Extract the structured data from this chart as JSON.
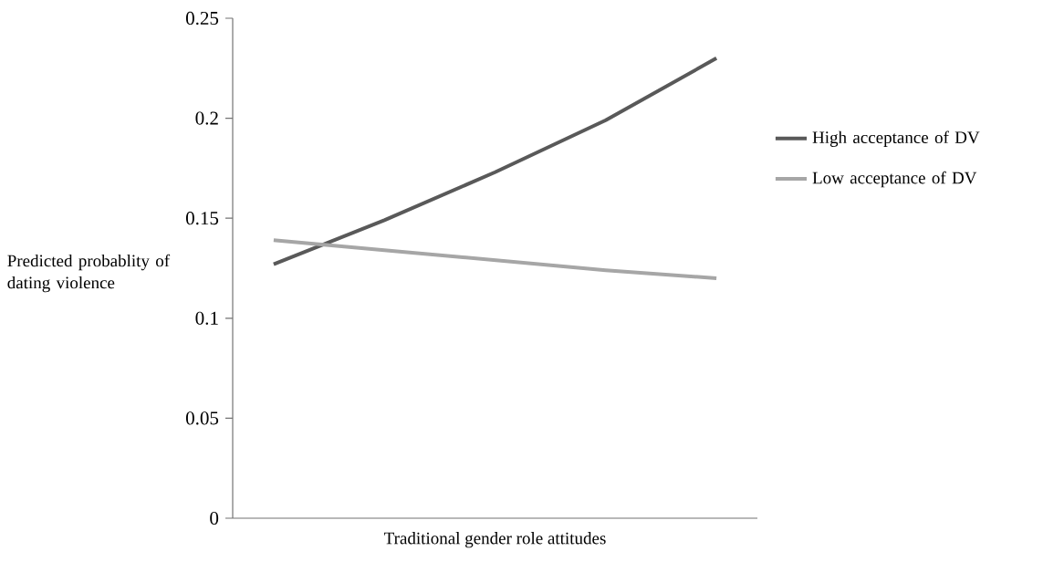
{
  "chart_data": {
    "type": "line",
    "xlabel": "Traditional gender role attitudes",
    "ylabel": "Predicted probablity of dating violence",
    "categories": [
      null,
      null,
      null,
      null,
      null
    ],
    "series": [
      {
        "name": "High acceptance of DV",
        "color": "#595959",
        "values": [
          0.127,
          0.149,
          0.173,
          0.199,
          0.23
        ]
      },
      {
        "name": "Low acceptance of DV",
        "color": "#a6a6a6",
        "values": [
          0.139,
          0.134,
          0.129,
          0.124,
          0.12
        ]
      }
    ],
    "ylim": [
      0,
      0.25
    ],
    "yticks": [
      0,
      0.05,
      0.1,
      0.15,
      0.2,
      0.25
    ],
    "grid": false,
    "legend": "right",
    "marker": "none",
    "line_style": "solid"
  }
}
